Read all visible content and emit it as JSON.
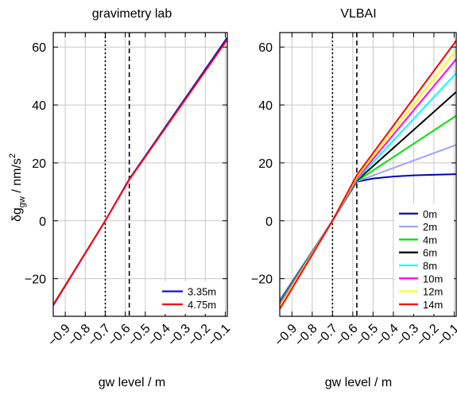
{
  "colors": {
    "grid": "#c8c8c8",
    "frame": "#000000",
    "blue": "#0000ff",
    "red": "#ff0000",
    "lightblue": "#a0a0ff",
    "green": "#00e000",
    "black": "#000000",
    "cyan": "#00ffff",
    "magenta": "#ff00ff",
    "yellow": "#ffff00",
    "legend_blue": "#0000c8"
  },
  "shared": {
    "xlabel": "gw level / m",
    "ylabel_main": "δg",
    "ylabel_sub": "gw",
    "ylabel_rest": " / nm/s",
    "ylabel_sup": "2"
  },
  "chart_data": [
    {
      "type": "line",
      "title": "gravimetry lab",
      "xlim": [
        -0.96,
        -0.09
      ],
      "ylim": [
        -33,
        65
      ],
      "grid": true,
      "legend_position": "bottom-right",
      "x_ticks": [
        -0.9,
        -0.8,
        -0.7,
        -0.6,
        -0.5,
        -0.4,
        -0.3,
        -0.2,
        -0.1
      ],
      "x_tick_labels": [
        "−0.9",
        "−0.8",
        "−0.7",
        "−0.6",
        "−0.5",
        "−0.4",
        "−0.3",
        "−0.2",
        "−0.1"
      ],
      "y_ticks": [
        -20,
        0,
        20,
        40,
        60
      ],
      "y_tick_labels": [
        "−20",
        "0",
        "20",
        "40",
        "60"
      ],
      "vlines": [
        {
          "x": -0.7,
          "style": "dotted"
        },
        {
          "x": -0.58,
          "style": "dashed"
        }
      ],
      "series": [
        {
          "name": "3.35m",
          "color": "#0000ff",
          "points": [
            [
              -0.96,
              -29.2
            ],
            [
              -0.7,
              0.0
            ],
            [
              -0.58,
              14.4
            ],
            [
              -0.09,
              63.3
            ]
          ]
        },
        {
          "name": "4.75m",
          "color": "#ff0000",
          "points": [
            [
              -0.96,
              -29.0
            ],
            [
              -0.7,
              0.0
            ],
            [
              -0.58,
              14.2
            ],
            [
              -0.09,
              62.6
            ]
          ]
        }
      ]
    },
    {
      "type": "line",
      "title": "VLBAI",
      "xlim": [
        -0.96,
        -0.09
      ],
      "ylim": [
        -33,
        65
      ],
      "grid": true,
      "legend_position": "bottom-right",
      "x_ticks": [
        -0.9,
        -0.8,
        -0.7,
        -0.6,
        -0.5,
        -0.4,
        -0.3,
        -0.2,
        -0.1
      ],
      "x_tick_labels": [
        "−0.9",
        "−0.8",
        "−0.7",
        "−0.6",
        "−0.5",
        "−0.4",
        "−0.3",
        "−0.2",
        "−0.1"
      ],
      "y_ticks": [
        -20,
        0,
        20,
        40,
        60
      ],
      "y_tick_labels": [
        "−20",
        "0",
        "20",
        "40",
        "60"
      ],
      "vlines": [
        {
          "x": -0.7,
          "style": "dotted"
        },
        {
          "x": -0.58,
          "style": "dashed"
        }
      ],
      "series": [
        {
          "name": "0m",
          "color": "#0000c8",
          "points": [
            [
              -0.96,
              -27.5
            ],
            [
              -0.7,
              0.0
            ],
            [
              -0.58,
              13.5
            ],
            [
              -0.5,
              14.6
            ],
            [
              -0.4,
              15.3
            ],
            [
              -0.3,
              15.7
            ],
            [
              -0.2,
              15.9
            ],
            [
              -0.09,
              16.1
            ]
          ]
        },
        {
          "name": "2m",
          "color": "#a0a0ff",
          "points": [
            [
              -0.96,
              -27.8
            ],
            [
              -0.7,
              0.0
            ],
            [
              -0.58,
              13.6
            ],
            [
              -0.09,
              26.2
            ]
          ]
        },
        {
          "name": "4m",
          "color": "#00e000",
          "points": [
            [
              -0.96,
              -28.0
            ],
            [
              -0.7,
              0.0
            ],
            [
              -0.58,
              13.7
            ],
            [
              -0.09,
              36.3
            ]
          ]
        },
        {
          "name": "6m",
          "color": "#000000",
          "points": [
            [
              -0.96,
              -28.3
            ],
            [
              -0.7,
              0.0
            ],
            [
              -0.58,
              13.9
            ],
            [
              -0.09,
              44.5
            ]
          ]
        },
        {
          "name": "8m",
          "color": "#00ffff",
          "points": [
            [
              -0.96,
              -28.6
            ],
            [
              -0.7,
              0.0
            ],
            [
              -0.58,
              14.2
            ],
            [
              -0.09,
              51.0
            ]
          ]
        },
        {
          "name": "10m",
          "color": "#ff00ff",
          "points": [
            [
              -0.96,
              -29.0
            ],
            [
              -0.7,
              0.0
            ],
            [
              -0.58,
              14.6
            ],
            [
              -0.09,
              55.8
            ]
          ]
        },
        {
          "name": "12m",
          "color": "#ffff00",
          "points": [
            [
              -0.96,
              -29.6
            ],
            [
              -0.7,
              0.0
            ],
            [
              -0.58,
              15.1
            ],
            [
              -0.09,
              59.0
            ]
          ]
        },
        {
          "name": "14m",
          "color": "#ff0000",
          "points": [
            [
              -0.96,
              -30.5
            ],
            [
              -0.7,
              0.0
            ],
            [
              -0.58,
              15.8
            ],
            [
              -0.09,
              62.2
            ]
          ]
        }
      ]
    }
  ]
}
